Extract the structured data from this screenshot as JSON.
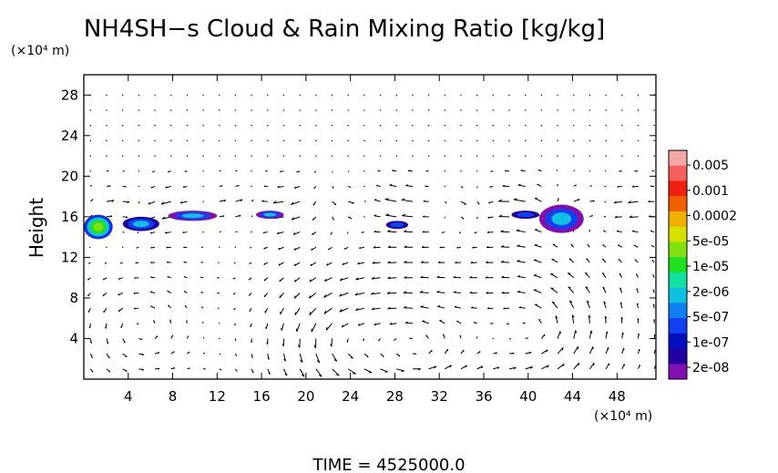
{
  "chart_data": {
    "type": "heatmap",
    "title": "NH4SH−s Cloud & Rain Mixing Ratio [kg/kg]",
    "x_unit": "(×10⁴ m)",
    "y_unit": "(×10⁴ m)",
    "ylabel": "Height",
    "xlim": [
      0,
      51.5
    ],
    "ylim": [
      0,
      30
    ],
    "x_ticks": [
      4,
      8,
      12,
      16,
      20,
      24,
      28,
      32,
      36,
      40,
      44,
      48
    ],
    "y_ticks": [
      4,
      8,
      12,
      16,
      20,
      24,
      28
    ],
    "x_tick_labels": [
      "4",
      "8",
      "12",
      "16",
      "20",
      "24",
      "28",
      "32",
      "36",
      "40",
      "44",
      "48"
    ],
    "y_tick_labels": [
      "4",
      "8",
      "12",
      "16",
      "20",
      "24",
      "28"
    ],
    "colorbar": {
      "labels": [
        "0.005",
        "0.001",
        "0.0002",
        "5e-05",
        "1e-05",
        "2e-06",
        "5e-07",
        "1e-07",
        "2e-08"
      ],
      "colors": [
        "#f4a7a7",
        "#f46060",
        "#f02010",
        "#f06000",
        "#f0b000",
        "#d8e000",
        "#80e010",
        "#20e020",
        "#10e0a0",
        "#10c0e0",
        "#1080f0",
        "#1040f0",
        "#0010c0",
        "#2000a0",
        "#8010b0"
      ]
    },
    "cloud_patches": [
      {
        "x": [
          0,
          2.6
        ],
        "y": [
          13.8,
          16.2
        ],
        "level": "1e-05"
      },
      {
        "x": [
          3.5,
          6.8
        ],
        "y": [
          14.6,
          16.0
        ],
        "level": "2e-06"
      },
      {
        "x": [
          7.6,
          12.0
        ],
        "y": [
          15.6,
          16.6
        ],
        "level": "5e-07"
      },
      {
        "x": [
          15.5,
          18.0
        ],
        "y": [
          15.8,
          16.6
        ],
        "level": "5e-07"
      },
      {
        "x": [
          27.2,
          29.2
        ],
        "y": [
          14.8,
          15.6
        ],
        "level": "1e-07"
      },
      {
        "x": [
          38.5,
          41.0
        ],
        "y": [
          15.8,
          16.6
        ],
        "level": "1e-07"
      },
      {
        "x": [
          41.0,
          45.0
        ],
        "y": [
          14.4,
          17.2
        ],
        "level": "5e-07"
      }
    ],
    "time_label": "TIME  =  4525000.0"
  }
}
